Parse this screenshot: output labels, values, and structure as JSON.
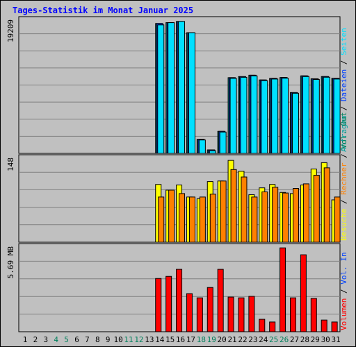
{
  "title": "Tages-Statistik im Monat Januar 2025",
  "colors": {
    "background": "#c0c0c0",
    "title": "#0000ff",
    "hits": "#00a0a0",
    "files": "#0040ff",
    "pages": "#00e0ff",
    "visits": "#ffff00",
    "sites": "#ff8000",
    "kbytes": "#ff0000",
    "weekend": "#00805c"
  },
  "chart_data": [
    {
      "type": "bar",
      "panel": "top",
      "y_max_label": "19209",
      "ylim": [
        0,
        19209
      ],
      "grid": true,
      "categories": [
        "1",
        "2",
        "3",
        "4",
        "5",
        "6",
        "7",
        "8",
        "9",
        "10",
        "11",
        "12",
        "13",
        "14",
        "15",
        "16",
        "17",
        "18",
        "19",
        "20",
        "21",
        "22",
        "23",
        "24",
        "25",
        "26",
        "27",
        "28",
        "29",
        "30",
        "31"
      ],
      "weekend_days": [
        "4",
        "5",
        "11",
        "12",
        "18",
        "19",
        "25",
        "26"
      ],
      "legend": [
        {
          "name": "Anfragen",
          "color": "#00a0a0"
        },
        {
          "name": "Dateien",
          "color": "#0040ff"
        },
        {
          "name": "Seiten",
          "color": "#00e0ff"
        }
      ],
      "series": [
        {
          "name": "Anfragen",
          "values": [
            null,
            null,
            null,
            null,
            null,
            null,
            null,
            null,
            null,
            null,
            null,
            null,
            null,
            18630,
            18750,
            18920,
            17310,
            2020,
            500,
            3160,
            10860,
            11010,
            11210,
            10530,
            10760,
            10880,
            8720,
            11120,
            10700,
            11020,
            10760
          ]
        },
        {
          "name": "Dateien",
          "values": [
            null,
            null,
            null,
            null,
            null,
            null,
            null,
            null,
            null,
            null,
            null,
            null,
            null,
            18630,
            18750,
            18920,
            17310,
            2020,
            500,
            3160,
            10860,
            11010,
            11210,
            10530,
            10760,
            10880,
            8720,
            11120,
            10700,
            11020,
            10760
          ]
        },
        {
          "name": "Seiten",
          "values": [
            null,
            null,
            null,
            null,
            null,
            null,
            null,
            null,
            null,
            null,
            null,
            null,
            null,
            18430,
            18750,
            18920,
            17310,
            1920,
            380,
            3060,
            10760,
            10910,
            11110,
            10430,
            10660,
            10780,
            8620,
            11020,
            10600,
            10920,
            10660
          ]
        }
      ]
    },
    {
      "type": "bar",
      "panel": "middle",
      "y_max_label": "148",
      "ylim": [
        0,
        148
      ],
      "grid": true,
      "legend": [
        {
          "name": "Besuche",
          "color": "#ffff00"
        },
        {
          "name": "Rechner",
          "color": "#ff8000"
        },
        {
          "name": "Vol. Out",
          "color": "#00805c"
        }
      ],
      "series": [
        {
          "name": "Besuche",
          "values": [
            null,
            null,
            null,
            null,
            null,
            null,
            null,
            null,
            null,
            null,
            null,
            null,
            null,
            101,
            91,
            100,
            79,
            76,
            106,
            107,
            143,
            124,
            83,
            95,
            101,
            87,
            85,
            100,
            128,
            139,
            74
          ]
        },
        {
          "name": "Rechner",
          "values": [
            null,
            null,
            null,
            null,
            null,
            null,
            null,
            null,
            null,
            null,
            null,
            null,
            null,
            79,
            91,
            85,
            79,
            79,
            84,
            107,
            127,
            114,
            79,
            88,
            96,
            86,
            94,
            102,
            117,
            130,
            79
          ]
        }
      ]
    },
    {
      "type": "bar",
      "panel": "bottom",
      "y_max_label": "5.69 MB",
      "ylim": [
        0,
        5.69
      ],
      "grid": true,
      "legend": [
        {
          "name": "Volumen",
          "color": "#ff0000"
        },
        {
          "name": "Vol. In",
          "color": "#0040ff"
        }
      ],
      "series": [
        {
          "name": "Volumen",
          "values": [
            null,
            null,
            null,
            null,
            null,
            null,
            null,
            null,
            null,
            null,
            null,
            null,
            null,
            3.55,
            3.69,
            4.16,
            2.54,
            2.26,
            2.95,
            4.16,
            2.31,
            2.26,
            2.36,
            0.83,
            0.65,
            5.59,
            2.26,
            5.13,
            2.22,
            0.78,
            0.65
          ]
        }
      ]
    }
  ]
}
